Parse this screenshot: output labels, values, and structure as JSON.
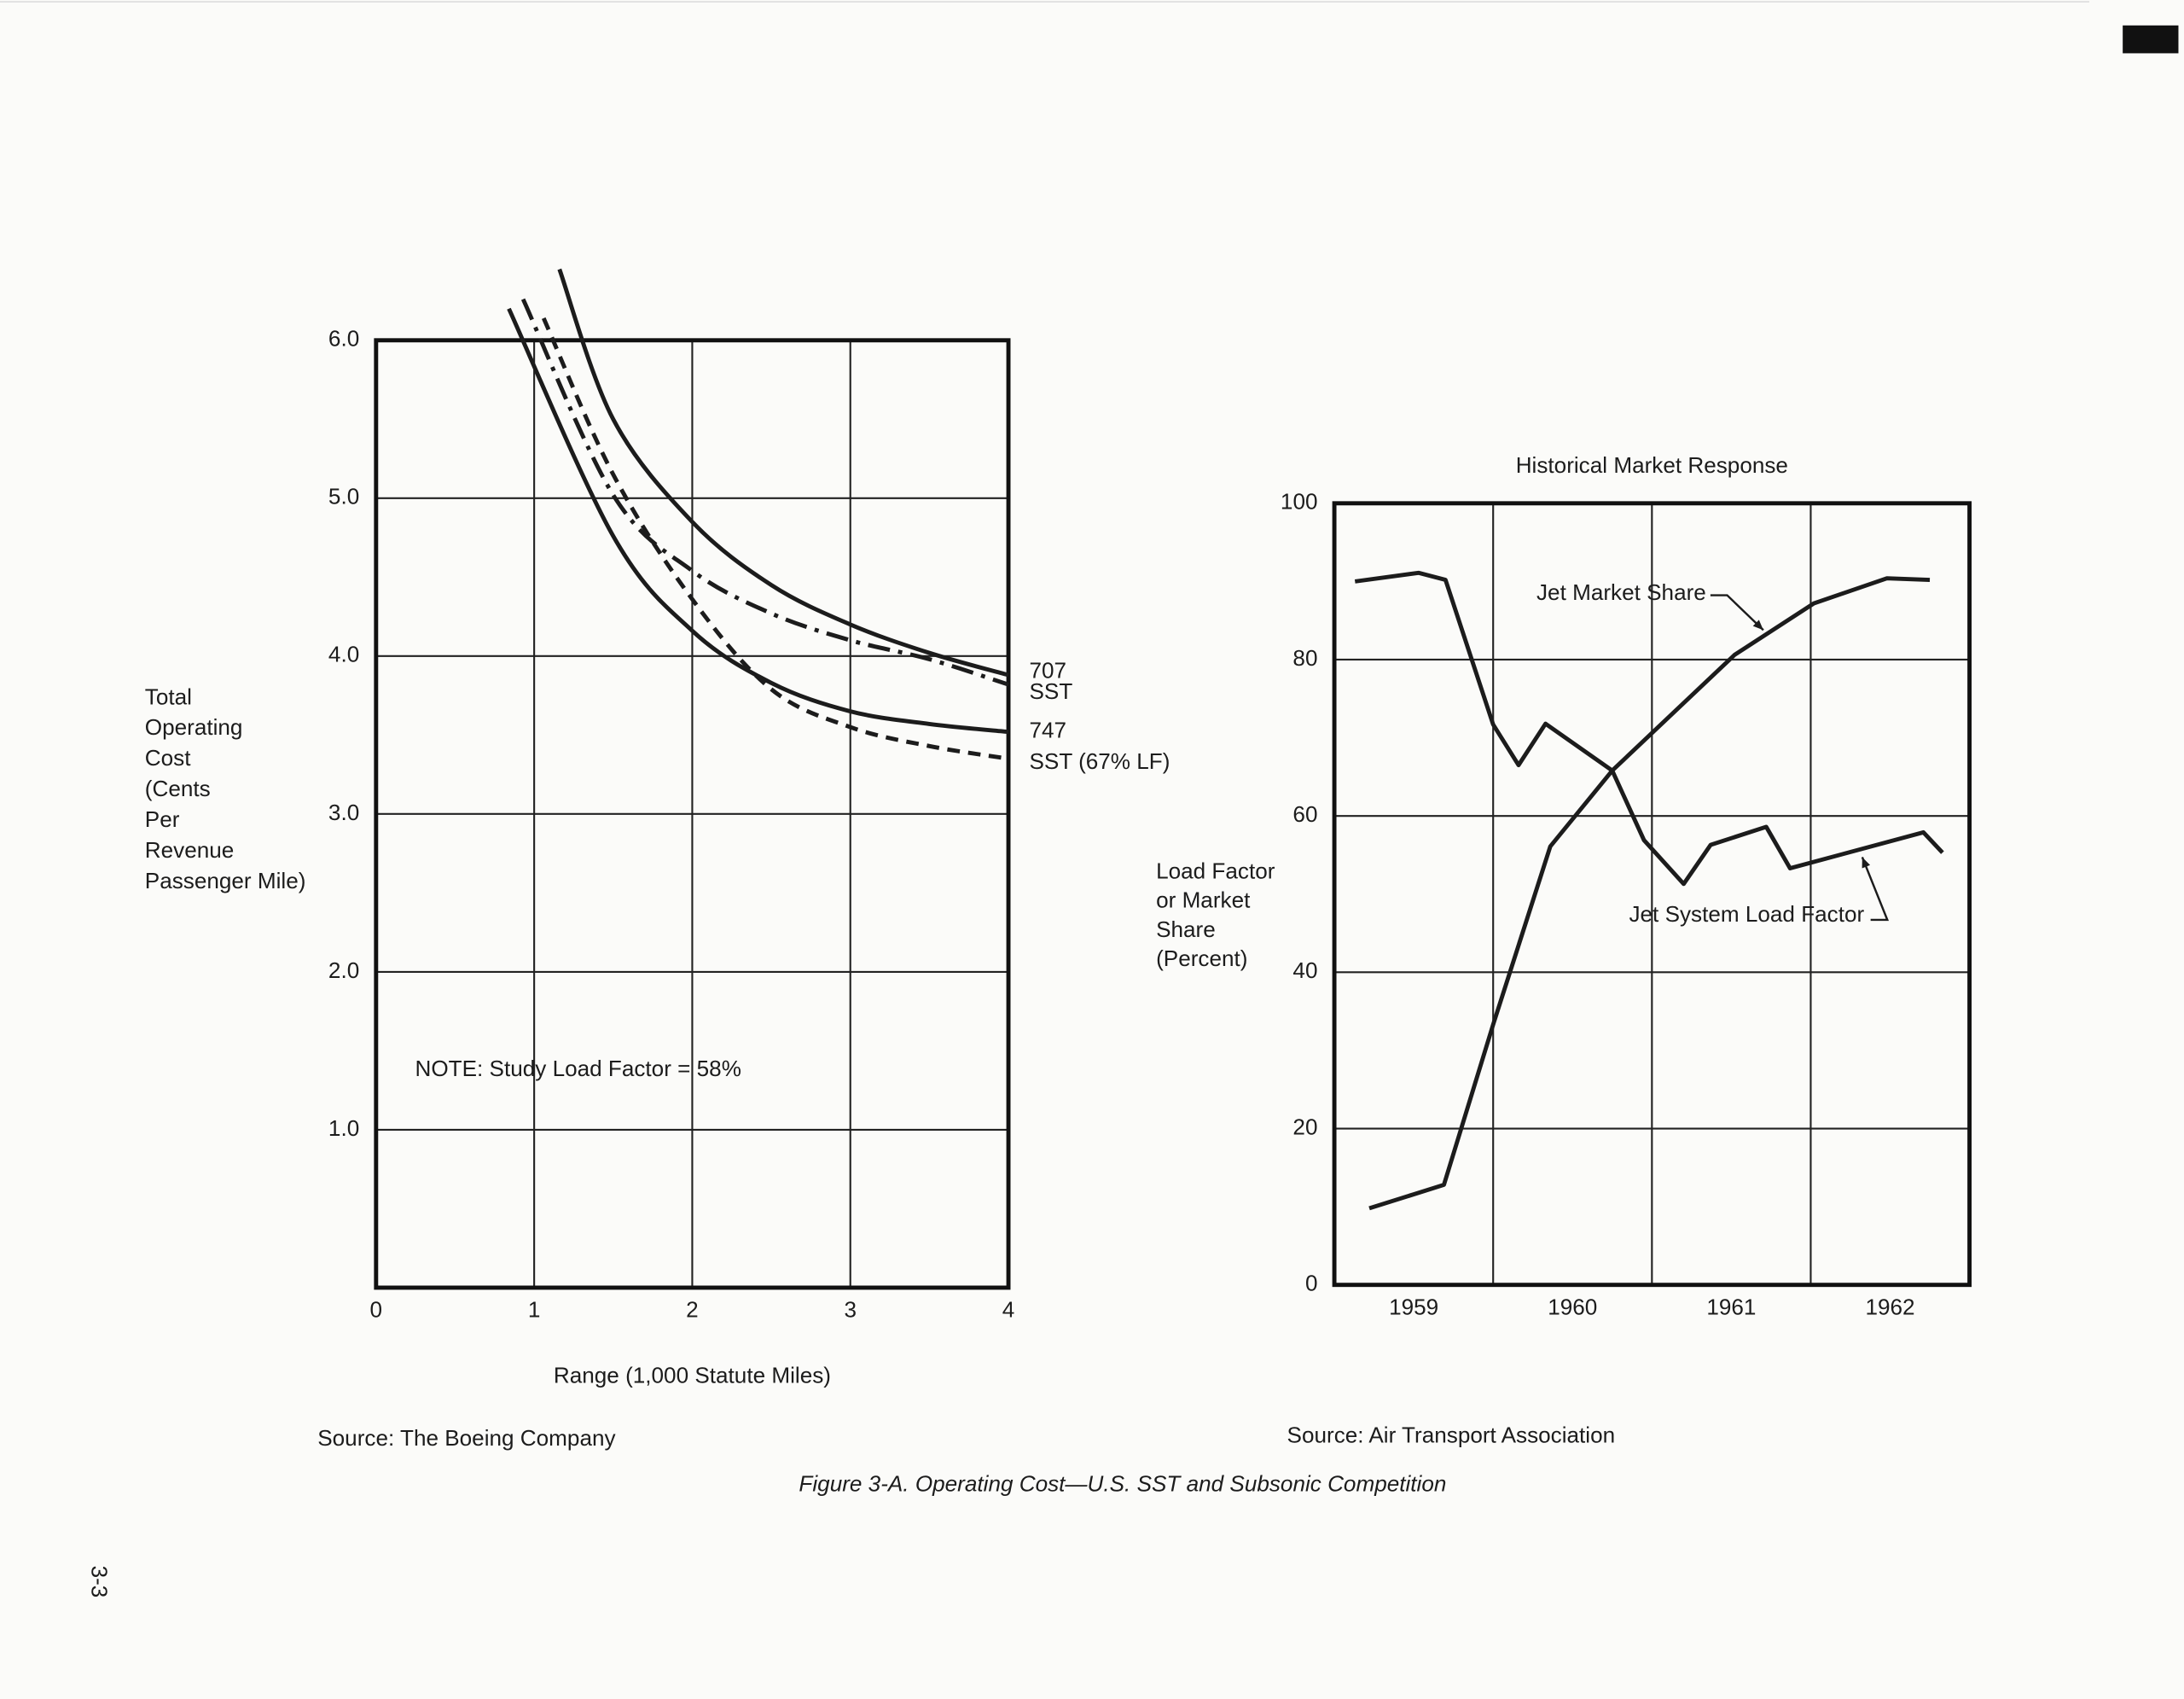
{
  "chart_data": [
    {
      "type": "line",
      "xlabel": "Range (1,000 Statute Miles)",
      "ylabel": [
        "Total",
        "Operating",
        "Cost",
        "(Cents",
        "Per",
        "Revenue",
        "Passenger Mile)"
      ],
      "note": "NOTE:  Study Load Factor = 58%",
      "source": "Source:  The Boeing Company",
      "xlim": [
        0,
        4
      ],
      "ylim": [
        0,
        6
      ],
      "xticks": [
        0,
        1,
        2,
        3,
        4
      ],
      "yticks": [
        {
          "value": 1,
          "label": "1.0"
        },
        {
          "value": 2,
          "label": "2.0"
        },
        {
          "value": 3,
          "label": "3.0"
        },
        {
          "value": 4,
          "label": "4.0"
        },
        {
          "value": 5,
          "label": "5.0"
        },
        {
          "value": 6,
          "label": "6.0"
        }
      ],
      "grid": true,
      "series": [
        {
          "name": "707",
          "color": "#1c1c1c",
          "style": "solid",
          "x": [
            1.16,
            1.5,
            2,
            2.5,
            3,
            3.5,
            4
          ],
          "values": [
            6.45,
            5.5,
            4.85,
            4.45,
            4.2,
            4.02,
            3.88
          ]
        },
        {
          "name": "SST",
          "color": "#1c1c1c",
          "style": "dashdot",
          "x": [
            0.93,
            1.5,
            2,
            2.5,
            3,
            3.5,
            4
          ],
          "values": [
            6.26,
            5.02,
            4.54,
            4.27,
            4.1,
            3.98,
            3.82
          ]
        },
        {
          "name": "747",
          "color": "#1c1c1c",
          "style": "solid",
          "x": [
            0.84,
            1.5,
            2,
            2.5,
            3,
            3.5,
            4
          ],
          "values": [
            6.2,
            4.76,
            4.16,
            3.83,
            3.65,
            3.57,
            3.52
          ]
        },
        {
          "name": "SST (67% LF)",
          "color": "#1c1c1c",
          "style": "dashed",
          "x": [
            1.06,
            1.5,
            2,
            2.5,
            3,
            3.5,
            4
          ],
          "values": [
            6.14,
            5.15,
            4.36,
            3.79,
            3.55,
            3.43,
            3.35
          ]
        }
      ]
    },
    {
      "type": "line",
      "title": "Historical Market Response",
      "ylabel": [
        "Load Factor",
        "or Market",
        "Share",
        "(Percent)"
      ],
      "source": "Source:  Air Transport Association",
      "xlim": [
        1959,
        1963
      ],
      "ylim": [
        0,
        100
      ],
      "xticks": [
        {
          "value": 1959.5,
          "label": "1959"
        },
        {
          "value": 1960.5,
          "label": "1960"
        },
        {
          "value": 1961.5,
          "label": "1961"
        },
        {
          "value": 1962.5,
          "label": "1962"
        }
      ],
      "xgrid": [
        1960,
        1961,
        1962
      ],
      "yticks": [
        0,
        20,
        40,
        60,
        80,
        100
      ],
      "grid": true,
      "series": [
        {
          "name": "Jet Market Share",
          "color": "#1c1c1c",
          "style": "solid",
          "x": [
            1959.22,
            1959.69,
            1960.0,
            1960.36,
            1960.75,
            1961.52,
            1962.02,
            1962.48,
            1962.75
          ],
          "values": [
            9.8,
            12.8,
            33.3,
            56.1,
            65.8,
            80.6,
            87.2,
            90.4,
            90.2
          ]
        },
        {
          "name": "Jet System Load Factor",
          "color": "#1c1c1c",
          "style": "solid",
          "x": [
            1959.13,
            1959.53,
            1959.7,
            1960.0,
            1960.16,
            1960.33,
            1960.75,
            1960.95,
            1961.2,
            1961.37,
            1961.72,
            1961.87,
            1962.71,
            1962.83
          ],
          "values": [
            90.0,
            91.1,
            90.2,
            71.7,
            66.5,
            71.8,
            65.8,
            56.9,
            51.3,
            56.3,
            58.6,
            53.3,
            57.9,
            55.3
          ]
        }
      ]
    }
  ],
  "caption": "Figure 3-A.  Operating Cost—U.S. SST and Subsonic Competition",
  "page_number": "3-3"
}
